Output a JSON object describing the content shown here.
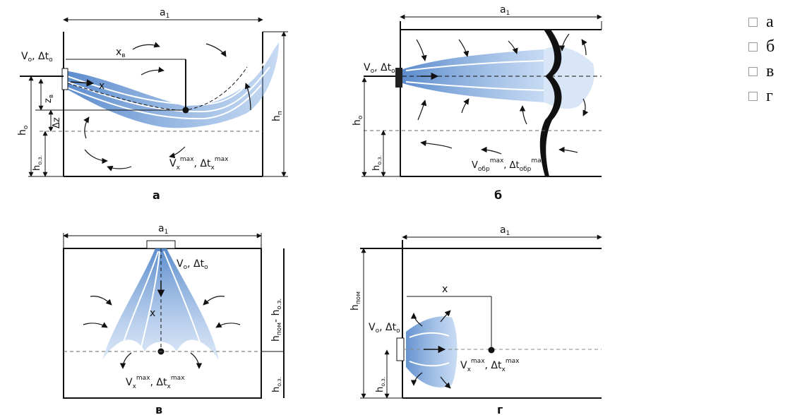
{
  "options": [
    "а",
    "б",
    "в",
    "г"
  ],
  "panels": {
    "a": {
      "caption": "а",
      "a1": "a",
      "a1_sub": "1",
      "Vo": "V",
      "Vo_sub": "o",
      "dto": ", Δt",
      "dto_sub": "o",
      "xb": "x",
      "xb_sub": "в",
      "x": "x",
      "zb": "z",
      "zb_sub": "в",
      "dz": "Δz",
      "ho": "h",
      "ho_sub": "o",
      "hoz": "h",
      "hoz_sub": "o.з.",
      "hp": "h",
      "hp_sub": "п",
      "vx": "V",
      "vx_sub": "x",
      "max": "max",
      "dtx": ", Δt",
      "dtx_sub": "x"
    },
    "b": {
      "caption": "б",
      "a1": "a",
      "a1_sub": "1",
      "Vo": "V",
      "Vo_sub": "o",
      "dto": ", Δt",
      "dto_sub": "o",
      "ho": "h",
      "ho_sub": "o",
      "hoz": "h",
      "hoz_sub": "o.з.",
      "vobr": "V",
      "vobr_sub": "обр",
      "max": "max",
      "dtobr": ", Δt",
      "dtobr_sub": "обр"
    },
    "v": {
      "caption": "в",
      "a1": "a",
      "a1_sub": "1",
      "Vo": "V",
      "Vo_sub": "o",
      "dto": ", Δt",
      "dto_sub": "o",
      "x": "x",
      "hpom": "h",
      "hpom_sub": "пом",
      "minus": "- h",
      "minus_sub": "o.з.",
      "hoz": "h",
      "hoz_sub": "o.з.",
      "vx": "V",
      "vx_sub": "x",
      "max": "max",
      "dtx": ", Δt",
      "dtx_sub": "x"
    },
    "g": {
      "caption": "г",
      "a1": "a",
      "a1_sub": "1",
      "Vo": "V",
      "Vo_sub": "o",
      "dto": ", Δt",
      "dto_sub": "o",
      "x": "x",
      "hpom": "h",
      "hpom_sub": "пом",
      "hoz": "h",
      "hoz_sub": "o.з.",
      "vx": "V",
      "vx_sub": "x",
      "max": "max",
      "dtx": ", Δt",
      "dtx_sub": "x"
    }
  }
}
